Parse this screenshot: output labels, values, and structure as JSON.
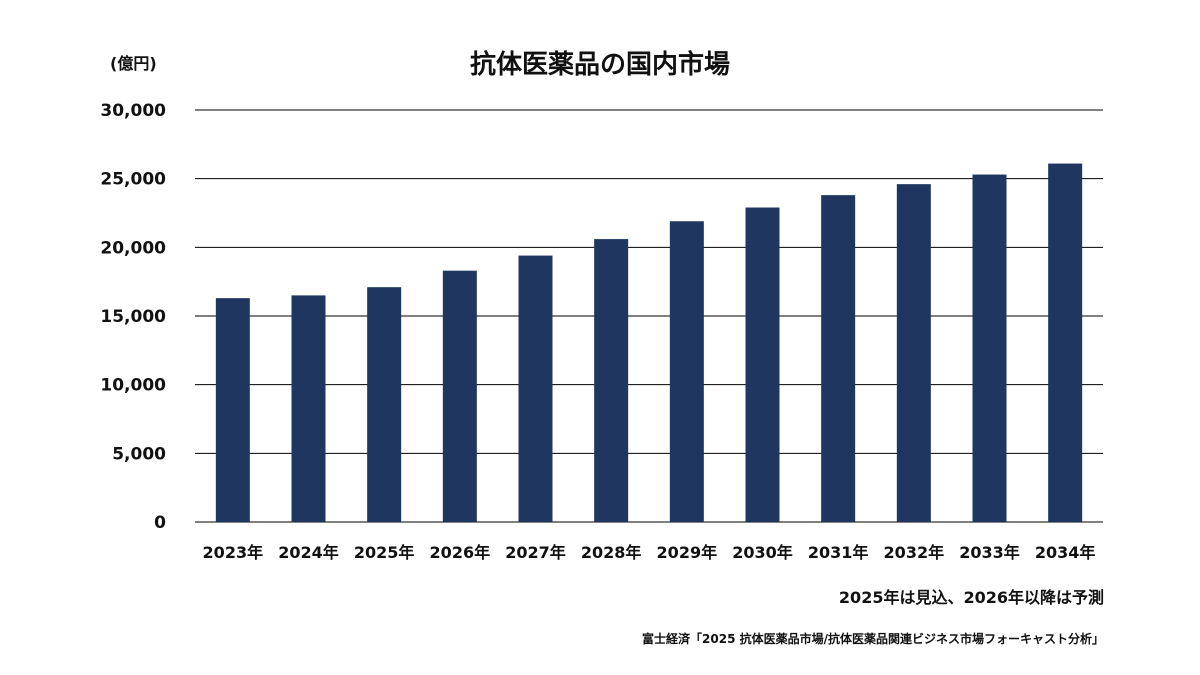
{
  "chart_data": {
    "type": "bar",
    "title": "抗体医薬品の国内市場",
    "unit_label": "(億円)",
    "categories": [
      "2023年",
      "2024年",
      "2025年",
      "2026年",
      "2027年",
      "2028年",
      "2029年",
      "2030年",
      "2031年",
      "2032年",
      "2033年",
      "2034年"
    ],
    "values": [
      16300,
      16500,
      17100,
      18300,
      19400,
      20600,
      21900,
      22900,
      23800,
      24600,
      25300,
      26100
    ],
    "yticks": [
      "0",
      "5,000",
      "10,000",
      "15,000",
      "20,000",
      "25,000",
      "30,000"
    ],
    "ylim": [
      0,
      30000
    ],
    "grid": true,
    "legend": "none",
    "bar_color": "#1f3660",
    "note": "2025年は見込、2026年以降は予測",
    "source": "富士経済「2025 抗体医薬品市場/抗体医薬品関連ビジネス市場フォーキャスト分析」"
  }
}
